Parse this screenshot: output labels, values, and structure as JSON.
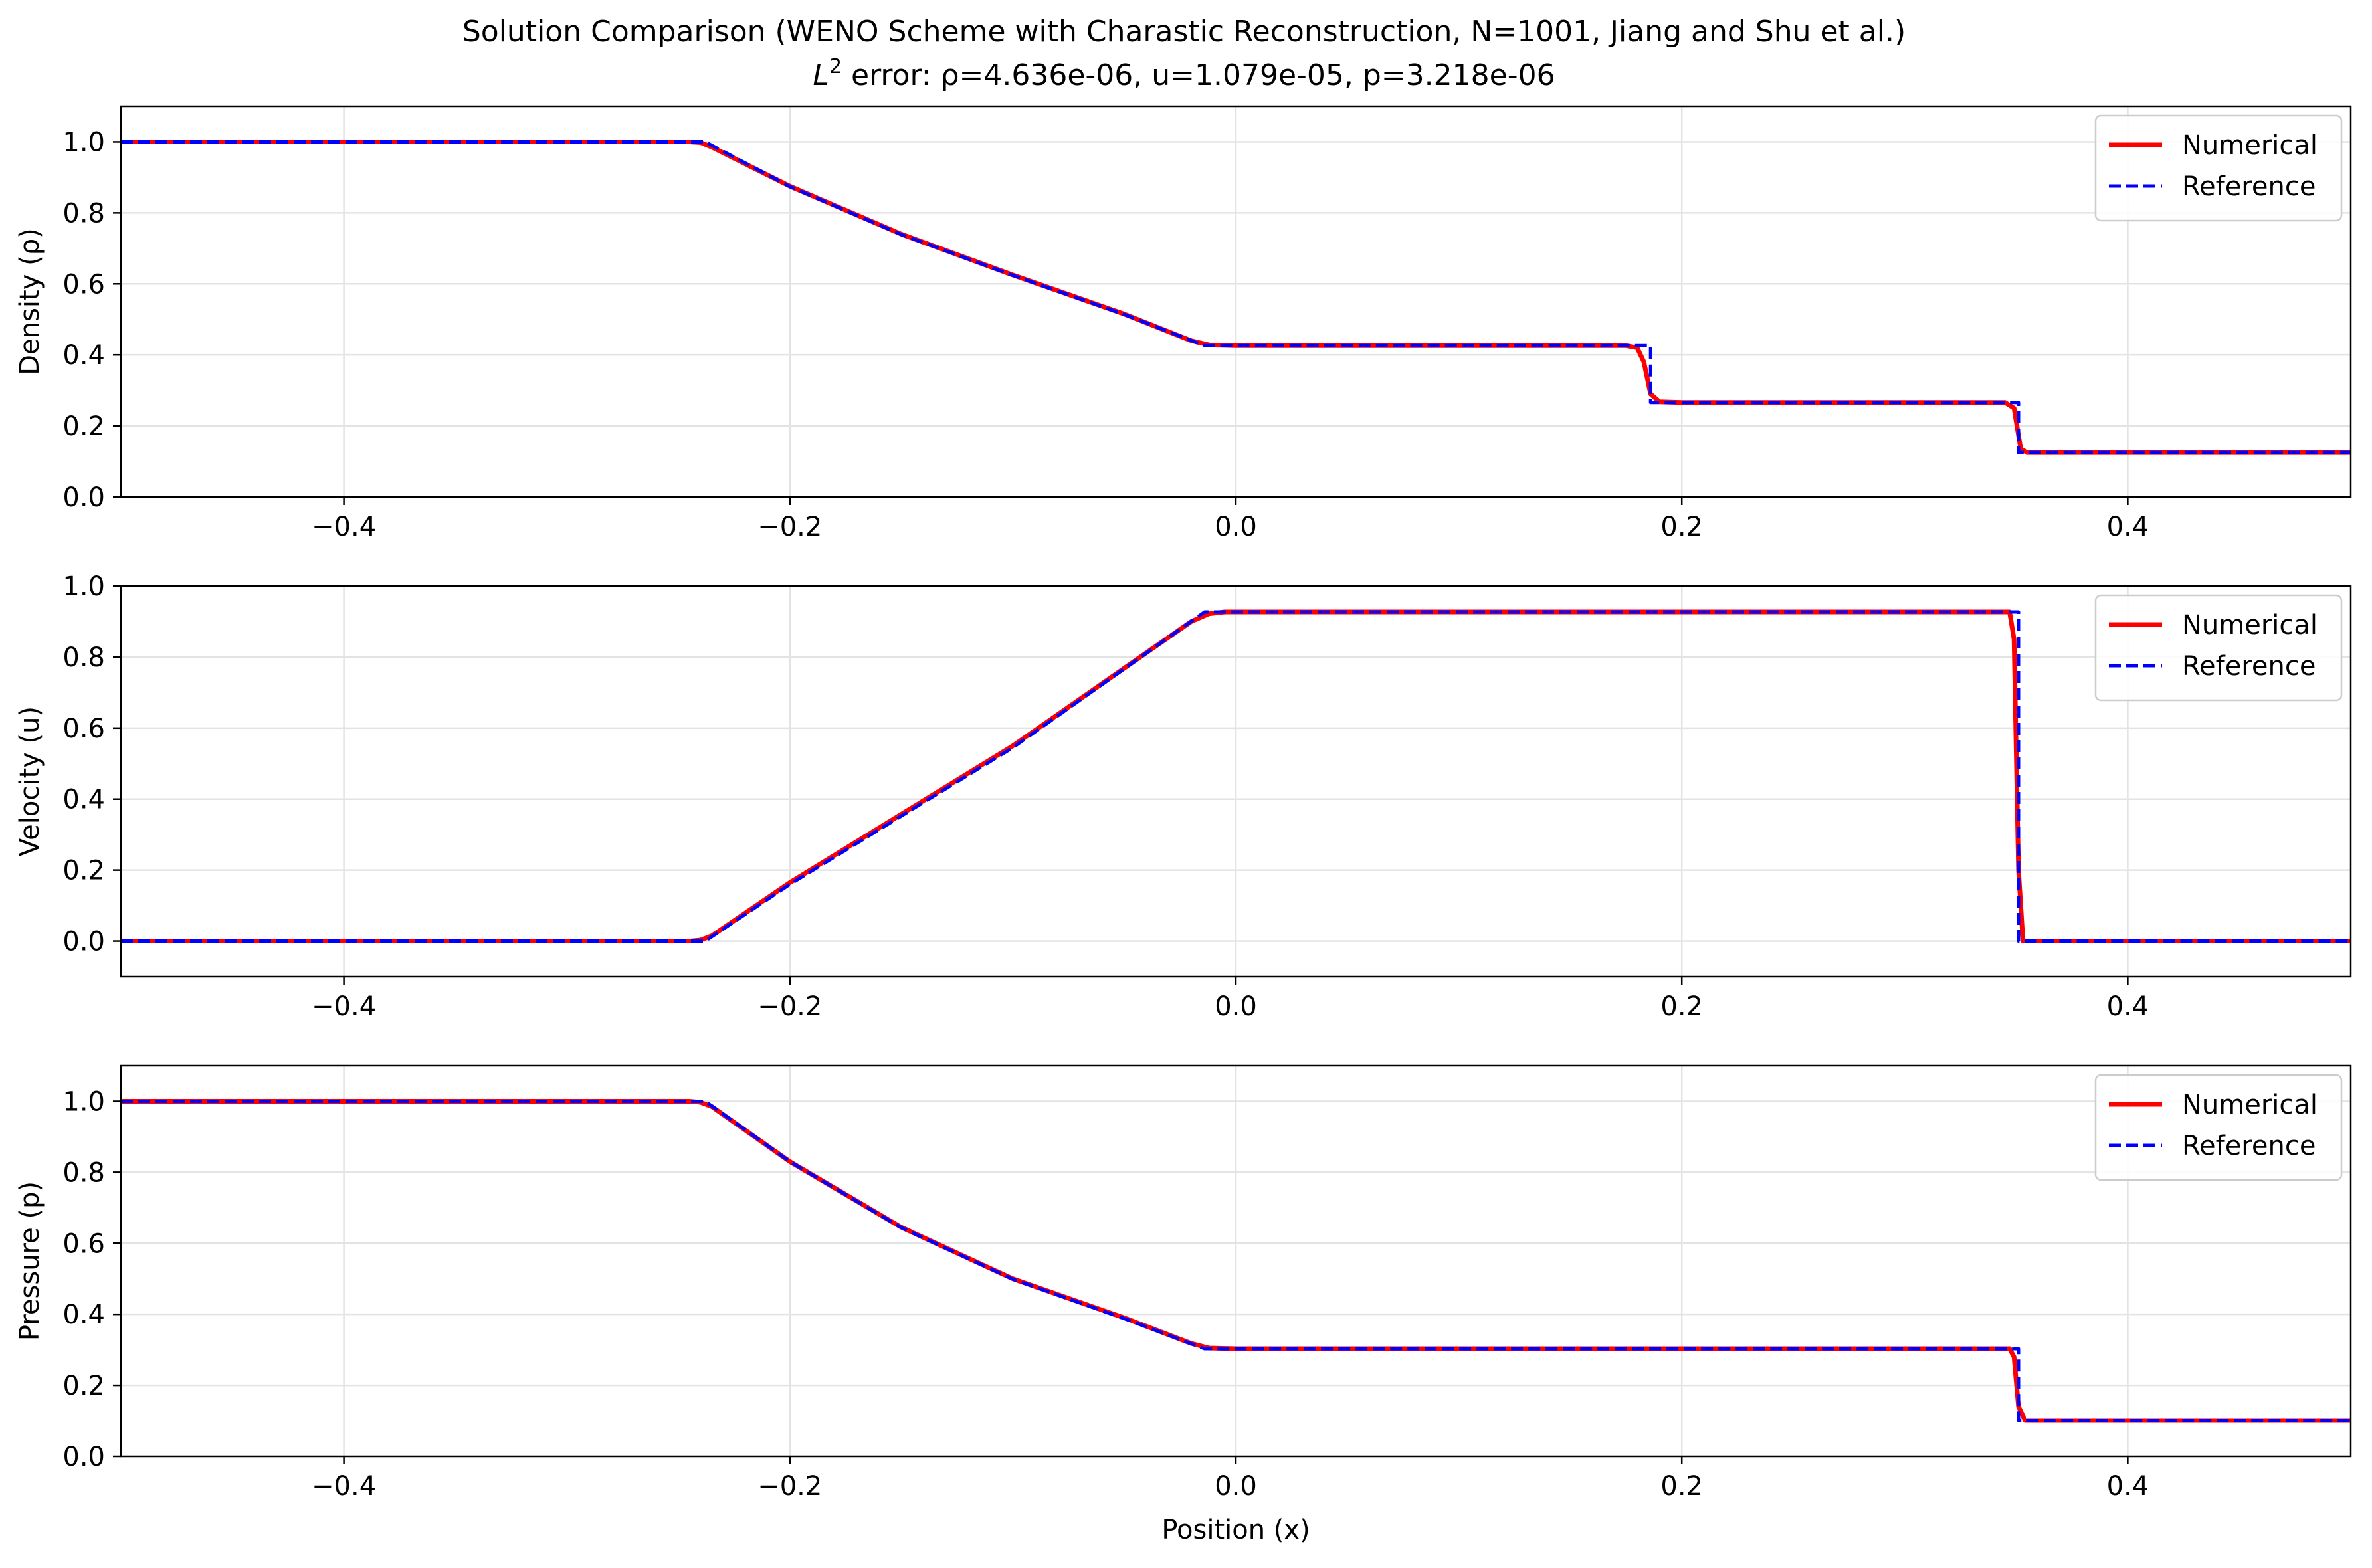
{
  "figure": {
    "title_line1": "Solution Comparison (WENO Scheme with Charastic Reconstruction, N=1001, Jiang and Shu et al.)",
    "title_line2_prefix": "L",
    "title_line2_sup": "2",
    "title_line2_rest": " error: ρ=4.636e-06, u=1.079e-05, p=3.218e-06"
  },
  "colors": {
    "numerical": "#ff0000",
    "reference": "#0000ff",
    "grid": "#e3e3e3",
    "axes": "#000000"
  },
  "chart_data": [
    {
      "type": "line",
      "ylabel": "Density (ρ)",
      "xlabel": "",
      "xlim": [
        -0.5,
        0.5
      ],
      "ylim": [
        0.0,
        1.1
      ],
      "xticks": [
        -0.4,
        -0.2,
        0.0,
        0.2,
        0.4
      ],
      "xtick_labels": [
        "−0.4",
        "−0.2",
        "0.0",
        "0.2",
        "0.4"
      ],
      "yticks": [
        0.0,
        0.2,
        0.4,
        0.6,
        0.8,
        1.0
      ],
      "ytick_labels": [
        "0.0",
        "0.2",
        "0.4",
        "0.6",
        "0.8",
        "1.0"
      ],
      "grid": true,
      "legend_position": "top-right",
      "series": [
        {
          "name": "Numerical",
          "style": "solid",
          "x": [
            -0.5,
            -0.245,
            -0.24,
            -0.235,
            -0.2,
            -0.15,
            -0.1,
            -0.05,
            -0.02,
            -0.012,
            0.0,
            0.175,
            0.18,
            0.183,
            0.186,
            0.19,
            0.2,
            0.345,
            0.349,
            0.352,
            0.355,
            0.5
          ],
          "y": [
            1.0,
            1.0,
            0.998,
            0.985,
            0.875,
            0.74,
            0.625,
            0.515,
            0.44,
            0.428,
            0.426,
            0.426,
            0.42,
            0.38,
            0.29,
            0.268,
            0.266,
            0.266,
            0.25,
            0.135,
            0.125,
            0.125
          ]
        },
        {
          "name": "Reference",
          "style": "dashed",
          "x": [
            -0.5,
            -0.238,
            -0.2,
            -0.15,
            -0.1,
            -0.05,
            -0.014,
            0.186,
            0.186,
            0.351,
            0.351,
            0.5
          ],
          "y": [
            1.0,
            1.0,
            0.874,
            0.739,
            0.624,
            0.514,
            0.426,
            0.426,
            0.266,
            0.266,
            0.125,
            0.125
          ]
        }
      ]
    },
    {
      "type": "line",
      "ylabel": "Velocity (u)",
      "xlabel": "",
      "xlim": [
        -0.5,
        0.5
      ],
      "ylim": [
        -0.1,
        1.0
      ],
      "xticks": [
        -0.4,
        -0.2,
        0.0,
        0.2,
        0.4
      ],
      "xtick_labels": [
        "−0.4",
        "−0.2",
        "0.0",
        "0.2",
        "0.4"
      ],
      "yticks": [
        0.0,
        0.2,
        0.4,
        0.6,
        0.8,
        1.0
      ],
      "ytick_labels": [
        "0.0",
        "0.2",
        "0.4",
        "0.6",
        "0.8",
        "1.0"
      ],
      "grid": true,
      "legend_position": "top-right",
      "series": [
        {
          "name": "Numerical",
          "style": "solid",
          "x": [
            -0.5,
            -0.245,
            -0.24,
            -0.235,
            -0.2,
            -0.1,
            -0.02,
            -0.012,
            -0.005,
            0.347,
            0.349,
            0.351,
            0.353,
            0.5
          ],
          "y": [
            0.0,
            0.0,
            0.003,
            0.015,
            0.165,
            0.55,
            0.9,
            0.922,
            0.927,
            0.927,
            0.85,
            0.2,
            0.0,
            0.0
          ]
        },
        {
          "name": "Reference",
          "style": "dashed",
          "x": [
            -0.5,
            -0.238,
            -0.2,
            -0.1,
            -0.014,
            0.351,
            0.351,
            0.5
          ],
          "y": [
            0.0,
            0.0,
            0.16,
            0.545,
            0.927,
            0.927,
            0.0,
            0.0
          ]
        }
      ]
    },
    {
      "type": "line",
      "ylabel": "Pressure (p)",
      "xlabel": "Position (x)",
      "xlim": [
        -0.5,
        0.5
      ],
      "ylim": [
        0.0,
        1.1
      ],
      "xticks": [
        -0.4,
        -0.2,
        0.0,
        0.2,
        0.4
      ],
      "xtick_labels": [
        "−0.4",
        "−0.2",
        "0.0",
        "0.2",
        "0.4"
      ],
      "yticks": [
        0.0,
        0.2,
        0.4,
        0.6,
        0.8,
        1.0
      ],
      "ytick_labels": [
        "0.0",
        "0.2",
        "0.4",
        "0.6",
        "0.8",
        "1.0"
      ],
      "grid": true,
      "legend_position": "top-right",
      "series": [
        {
          "name": "Numerical",
          "style": "solid",
          "x": [
            -0.5,
            -0.245,
            -0.24,
            -0.235,
            -0.2,
            -0.15,
            -0.1,
            -0.05,
            -0.02,
            -0.012,
            0.0,
            0.347,
            0.349,
            0.351,
            0.354,
            0.5
          ],
          "y": [
            1.0,
            1.0,
            0.997,
            0.985,
            0.83,
            0.645,
            0.5,
            0.39,
            0.318,
            0.305,
            0.303,
            0.303,
            0.28,
            0.14,
            0.101,
            0.101
          ]
        },
        {
          "name": "Reference",
          "style": "dashed",
          "x": [
            -0.5,
            -0.238,
            -0.2,
            -0.15,
            -0.1,
            -0.05,
            -0.014,
            0.351,
            0.351,
            0.5
          ],
          "y": [
            1.0,
            1.0,
            0.83,
            0.644,
            0.499,
            0.388,
            0.303,
            0.303,
            0.101,
            0.101
          ]
        }
      ]
    }
  ]
}
